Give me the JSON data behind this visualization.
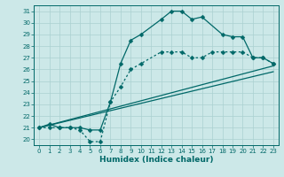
{
  "xlabel": "Humidex (Indice chaleur)",
  "ylabel": "",
  "bg_color": "#cce8e8",
  "grid_color": "#aad0d0",
  "line_color": "#006868",
  "xlim": [
    -0.5,
    23.5
  ],
  "ylim": [
    19.5,
    31.5
  ],
  "yticks": [
    20,
    21,
    22,
    23,
    24,
    25,
    26,
    27,
    28,
    29,
    30,
    31
  ],
  "xticks": [
    0,
    1,
    2,
    3,
    4,
    5,
    6,
    7,
    8,
    9,
    10,
    11,
    12,
    13,
    14,
    15,
    16,
    17,
    18,
    19,
    20,
    21,
    22,
    23
  ],
  "line1_x": [
    0,
    1,
    2,
    3,
    4,
    5,
    6,
    7,
    8,
    9,
    10,
    12,
    13,
    14,
    15,
    16,
    18,
    19,
    20,
    21,
    22,
    23
  ],
  "line1_y": [
    21,
    21.3,
    21,
    21,
    21,
    20.8,
    20.8,
    23.2,
    26.5,
    28.5,
    29,
    30.3,
    31,
    31,
    30.3,
    30.5,
    29,
    28.8,
    28.8,
    27,
    27,
    26.5
  ],
  "line2_x": [
    0,
    1,
    2,
    3,
    4,
    5,
    6,
    7,
    8,
    9,
    10,
    12,
    13,
    14,
    15,
    16,
    17,
    18,
    19,
    20,
    21,
    22,
    23
  ],
  "line2_y": [
    21,
    21,
    21,
    21,
    20.8,
    19.8,
    19.8,
    23.2,
    24.5,
    26,
    26.5,
    27.5,
    27.5,
    27.5,
    27,
    27,
    27.5,
    27.5,
    27.5,
    27.5,
    27,
    27,
    26.5
  ],
  "line3_x": [
    0,
    23
  ],
  "line3_y": [
    21,
    26.3
  ],
  "line4_x": [
    0,
    23
  ],
  "line4_y": [
    21,
    25.8
  ],
  "marker": "D",
  "markersize": 2.5,
  "linewidth": 0.9
}
